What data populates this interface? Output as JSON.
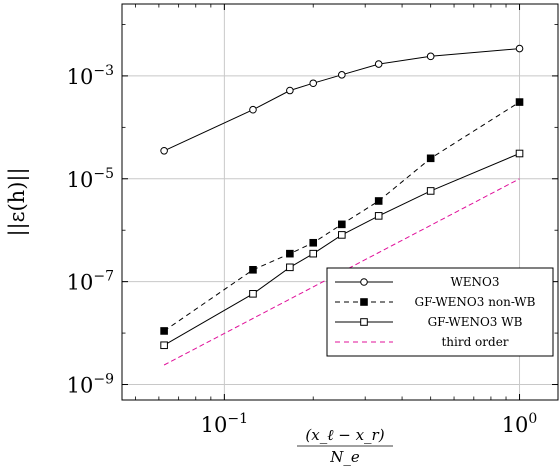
{
  "chart_data": {
    "type": "line",
    "xscale": "log",
    "yscale": "log",
    "xlim": [
      0.045,
      1.35
    ],
    "ylim": [
      5e-10,
      0.025
    ],
    "grid": true,
    "legend_position": "bottom-right",
    "ylabel": "||ε(h)||",
    "xlabel": {
      "numerator": "(x_ℓ − x_r)",
      "denominator": "N_e"
    },
    "x_ticks": [
      {
        "value": 0.1,
        "label_base": "10",
        "label_exp": "−1"
      },
      {
        "value": 1,
        "label_base": "10",
        "label_exp": "0"
      }
    ],
    "y_ticks": [
      {
        "value": 0.001,
        "label_base": "10",
        "label_exp": "−3"
      },
      {
        "value": 1e-05,
        "label_base": "10",
        "label_exp": "−5"
      },
      {
        "value": 1e-07,
        "label_base": "10",
        "label_exp": "−7"
      },
      {
        "value": 1e-09,
        "label_base": "10",
        "label_exp": "−9"
      }
    ],
    "series": [
      {
        "name": "WENO3",
        "marker": "circle-open",
        "dash": "solid",
        "color": "#000000",
        "x": [
          0.0625,
          0.125,
          0.1667,
          0.2,
          0.25,
          0.3333,
          0.5,
          1.0
        ],
        "y": [
          3.5e-05,
          0.00022,
          0.00052,
          0.00072,
          0.00105,
          0.0017,
          0.0024,
          0.0034
        ]
      },
      {
        "name": "GF-WENO3 non-WB",
        "marker": "square-filled",
        "dash": "dashed",
        "color": "#000000",
        "x": [
          0.0625,
          0.125,
          0.1667,
          0.2,
          0.25,
          0.3333,
          0.5,
          1.0
        ],
        "y": [
          1.1e-08,
          1.7e-07,
          3.5e-07,
          5.7e-07,
          1.3e-06,
          3.7e-06,
          2.5e-05,
          0.00031
        ]
      },
      {
        "name": "GF-WENO3 WB",
        "marker": "square-open",
        "dash": "solid",
        "color": "#000000",
        "x": [
          0.0625,
          0.125,
          0.1667,
          0.2,
          0.25,
          0.3333,
          0.5,
          1.0
        ],
        "y": [
          5.8e-09,
          5.8e-08,
          1.9e-07,
          3.5e-07,
          8.1e-07,
          1.9e-06,
          5.8e-06,
          3.1e-05
        ]
      },
      {
        "name": "third order",
        "marker": "none",
        "dash": "dashed",
        "color": "#e0109a",
        "x": [
          0.0625,
          1.0
        ],
        "y": [
          2.4e-09,
          1e-05
        ]
      }
    ]
  }
}
